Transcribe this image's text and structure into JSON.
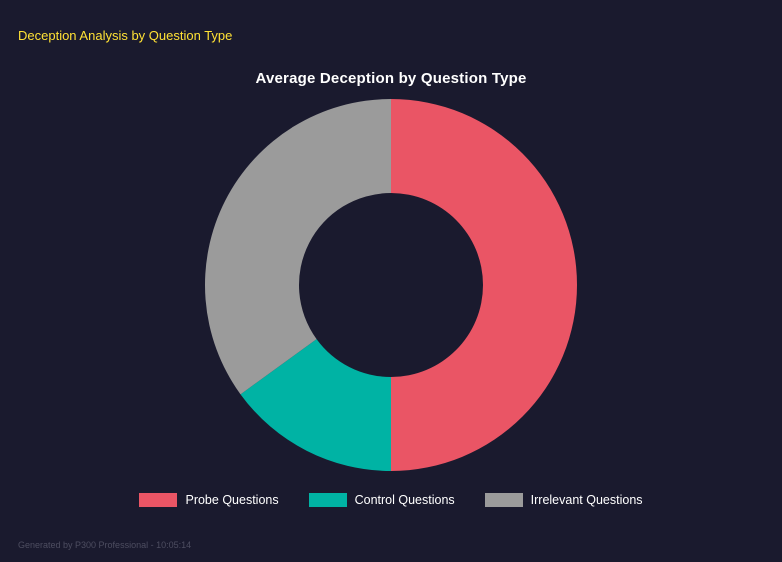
{
  "page": {
    "header": "Deception Analysis by Question Type",
    "footer": "Generated by P300 Professional - 10:05:14"
  },
  "colors": {
    "background": "#1a1a2e",
    "header_text": "#ffe135",
    "title_text": "#ffffff",
    "legend_text": "#ffffff",
    "footer_text": "#4d4d60"
  },
  "chart_data": {
    "type": "pie",
    "variant": "donut",
    "title": "Average Deception by Question Type",
    "labels": [
      "Probe Questions",
      "Control Questions",
      "Irrelevant Questions"
    ],
    "values": [
      50,
      15,
      35
    ],
    "values_are_percent_estimated": true,
    "colors": [
      "#ea5565",
      "#00b3a4",
      "#9b9b9b"
    ],
    "start_angle": "top",
    "direction": "clockwise",
    "legend_position": "bottom",
    "inner_radius_ratio": 0.495
  }
}
